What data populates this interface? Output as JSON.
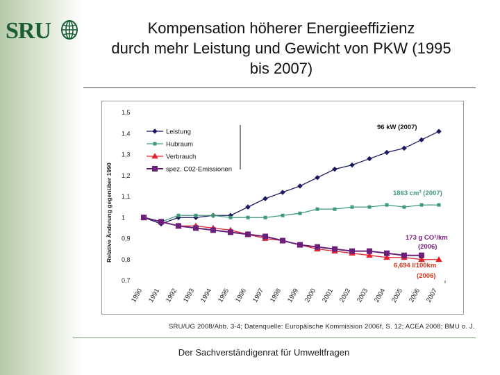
{
  "logo": {
    "text": "SRU"
  },
  "slide": {
    "title_line1": "Kompensation höherer Energieeffizienz",
    "title_line2": "durch mehr Leistung und Gewicht von PKW (1995",
    "title_line3": "bis 2007)",
    "source": "SRU/UG 2008/Abb. 3-4; Datenquelle: Europäische Kommission 2006f, S. 12; ACEA 2008; BMU o. J.",
    "footer": "Der Sachverständigenrat für Umweltfragen"
  },
  "colors": {
    "leistung": "#1a1a5e",
    "hubraum": "#3f9a79",
    "verbrauch": "#e8222a",
    "co2": "#6a1f7a",
    "annot_green": "#3f9a79",
    "annot_purple": "#7a1f7a",
    "annot_red": "#d4361a"
  },
  "chart_data": {
    "type": "line",
    "ylabel": "Relative Änderung gegenüber 1990",
    "ylim": [
      0.7,
      1.5
    ],
    "yticks": [
      "1,5",
      "1,4",
      "1,3",
      "1,2",
      "1,1",
      "1",
      "0,9",
      "0,8",
      "0,7"
    ],
    "categories": [
      "1990",
      "1991",
      "1992",
      "1993",
      "1994",
      "1995",
      "1996",
      "1997",
      "1998",
      "1999",
      "2000",
      "2001",
      "2002",
      "2003",
      "2004",
      "2005",
      "2006",
      "2007"
    ],
    "legend_position": "top-left",
    "series": [
      {
        "name": "Leistung",
        "marker": "diamond",
        "values": [
          1.0,
          0.97,
          1.0,
          1.0,
          1.01,
          1.01,
          1.05,
          1.09,
          1.12,
          1.15,
          1.19,
          1.23,
          1.25,
          1.28,
          1.31,
          1.33,
          1.37,
          1.41
        ]
      },
      {
        "name": "Hubraum",
        "marker": "square",
        "values": [
          1.0,
          0.98,
          1.01,
          1.01,
          1.01,
          1.0,
          1.0,
          1.0,
          1.01,
          1.02,
          1.04,
          1.04,
          1.05,
          1.05,
          1.06,
          1.05,
          1.06,
          1.06
        ]
      },
      {
        "name": "Verbrauch",
        "marker": "triangle",
        "values": [
          1.0,
          0.98,
          0.96,
          0.96,
          0.95,
          0.94,
          0.92,
          0.9,
          0.89,
          0.87,
          0.85,
          0.84,
          0.83,
          0.82,
          0.81,
          0.81,
          0.8,
          0.8
        ]
      },
      {
        "name": "spez. C02-Emissionen",
        "marker": "square",
        "values": [
          1.0,
          0.98,
          0.96,
          0.95,
          0.94,
          0.93,
          0.92,
          0.91,
          0.89,
          0.87,
          0.86,
          0.85,
          0.84,
          0.84,
          0.83,
          0.82,
          0.82,
          null
        ]
      }
    ],
    "annotations": [
      {
        "id": "leistung",
        "text": "96 kW (2007)"
      },
      {
        "id": "hubraum",
        "text": "1863 cm³ (2007)"
      },
      {
        "id": "co2_1",
        "text": "173 g CO²/km"
      },
      {
        "id": "co2_2",
        "text": "(2006)"
      },
      {
        "id": "verbrauch_1",
        "text": "6,694 l/100km"
      },
      {
        "id": "verbrauch_2",
        "text": "(2006)"
      }
    ]
  }
}
